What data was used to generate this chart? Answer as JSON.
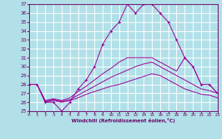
{
  "background_color": "#b2e0e8",
  "line_color": "#990099",
  "grid_color": "#ffffff",
  "xlabel": "Windchill (Refroidissement éolien,°C)",
  "xlabel_color": "#660066",
  "tick_color": "#660066",
  "ylim": [
    25,
    37
  ],
  "xlim": [
    0,
    23
  ],
  "yticks": [
    25,
    26,
    27,
    28,
    29,
    30,
    31,
    32,
    33,
    34,
    35,
    36,
    37
  ],
  "xticks": [
    0,
    1,
    2,
    3,
    4,
    5,
    6,
    7,
    8,
    9,
    10,
    11,
    12,
    13,
    14,
    15,
    16,
    17,
    18,
    19,
    20,
    21,
    22,
    23
  ],
  "curves": [
    {
      "x": [
        0,
        1,
        2,
        3,
        4,
        5,
        6,
        7,
        8,
        9,
        10,
        11,
        12,
        13,
        14,
        15,
        16,
        17,
        18,
        19,
        20,
        21,
        22,
        23
      ],
      "y": [
        28,
        28,
        26,
        26,
        25,
        26,
        27.5,
        28.5,
        30,
        32.5,
        34,
        35,
        37,
        36,
        37,
        37,
        36,
        35,
        33,
        31,
        30,
        28,
        28,
        27
      ],
      "marker": "+"
    },
    {
      "x": [
        0,
        1,
        2,
        3,
        4,
        5,
        6,
        7,
        8,
        9,
        10,
        11,
        12,
        13,
        14,
        15,
        16,
        17,
        18,
        19,
        20,
        21,
        22,
        23
      ],
      "y": [
        28,
        28,
        26.2,
        26.4,
        26.2,
        26.5,
        27.2,
        27.8,
        28.5,
        29.2,
        29.8,
        30.5,
        31,
        31,
        31,
        31,
        30.5,
        30,
        29.5,
        31,
        30,
        28,
        28,
        27
      ],
      "marker": null
    },
    {
      "x": [
        0,
        1,
        2,
        3,
        4,
        5,
        6,
        7,
        8,
        9,
        10,
        11,
        12,
        13,
        14,
        15,
        16,
        17,
        18,
        19,
        20,
        21,
        22,
        23
      ],
      "y": [
        28,
        28,
        26.1,
        26.3,
        26.1,
        26.3,
        26.8,
        27.3,
        27.8,
        28.3,
        28.8,
        29.2,
        29.6,
        30,
        30.3,
        30.5,
        30,
        29.5,
        29,
        28.5,
        28,
        27.5,
        27.3,
        27
      ],
      "marker": null
    },
    {
      "x": [
        0,
        1,
        2,
        3,
        4,
        5,
        6,
        7,
        8,
        9,
        10,
        11,
        12,
        13,
        14,
        15,
        16,
        17,
        18,
        19,
        20,
        21,
        22,
        23
      ],
      "y": [
        28,
        28,
        26.0,
        26.2,
        26.0,
        26.2,
        26.5,
        26.9,
        27.2,
        27.5,
        27.8,
        28.0,
        28.3,
        28.6,
        28.9,
        29.2,
        29.0,
        28.5,
        28.0,
        27.5,
        27.2,
        26.9,
        26.8,
        26.5
      ],
      "marker": null
    }
  ]
}
